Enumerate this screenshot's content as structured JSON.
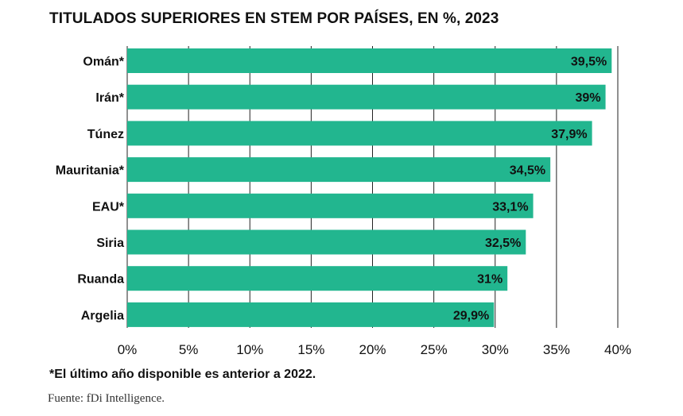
{
  "title": "TITULADOS SUPERIORES EN STEM POR PAÍSES, EN %, 2023",
  "footnote": "*El último año disponible es anterior a 2022.",
  "source": "Fuente: fDi Intelligence.",
  "colors": {
    "bar": "#22b68f",
    "grid": "#222222",
    "text": "#111111"
  },
  "chart_data": {
    "type": "bar",
    "orientation": "horizontal",
    "title": "TITULADOS SUPERIORES EN STEM POR PAÍSES, EN %, 2023",
    "categories": [
      "Omán*",
      "Irán*",
      "Túnez",
      "Mauritania*",
      "EAU*",
      "Siria",
      "Ruanda",
      "Argelia"
    ],
    "values": [
      39.5,
      39,
      37.9,
      34.5,
      33.1,
      32.5,
      31,
      29.9
    ],
    "value_labels": [
      "39,5%",
      "39%",
      "37,9%",
      "34,5%",
      "33,1%",
      "32,5%",
      "31%",
      "29,9%"
    ],
    "xlim": [
      0,
      40
    ],
    "xticks": [
      0,
      5,
      10,
      15,
      20,
      25,
      30,
      35,
      40
    ],
    "xtick_labels": [
      "0%",
      "5%",
      "10%",
      "15%",
      "20%",
      "25%",
      "30%",
      "35%",
      "40%"
    ],
    "grid": "vertical",
    "legend": "none"
  }
}
